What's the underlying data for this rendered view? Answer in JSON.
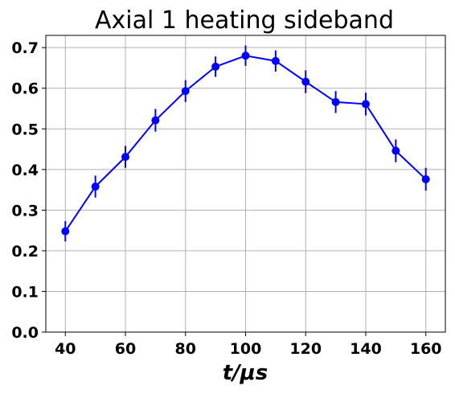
{
  "chart_data": {
    "type": "line",
    "title": "Axial 1 heating sideband",
    "xlabel": "t/μs",
    "ylabel": "",
    "xlim": [
      33.5,
      166.5
    ],
    "ylim": [
      0,
      0.73
    ],
    "xticks": [
      40,
      60,
      80,
      100,
      120,
      140,
      160
    ],
    "xtick_labels": [
      "40",
      "60",
      "80",
      "100",
      "120",
      "140",
      "160"
    ],
    "yticks": [
      0.0,
      0.1,
      0.2,
      0.3,
      0.4,
      0.5,
      0.6,
      0.7
    ],
    "ytick_labels": [
      "0.0",
      "0.1",
      "0.2",
      "0.3",
      "0.4",
      "0.5",
      "0.6",
      "0.7"
    ],
    "grid": true,
    "legend": false,
    "series": [
      {
        "color": "#0000ff",
        "marker": "circle",
        "errorbars": true,
        "x": [
          40,
          50,
          60,
          70,
          80,
          90,
          100,
          110,
          120,
          130,
          140,
          150,
          160
        ],
        "y": [
          0.248,
          0.358,
          0.431,
          0.521,
          0.593,
          0.653,
          0.68,
          0.667,
          0.616,
          0.566,
          0.561,
          0.446,
          0.376
        ],
        "yerr": [
          0.025,
          0.027,
          0.027,
          0.028,
          0.027,
          0.025,
          0.025,
          0.026,
          0.028,
          0.027,
          0.028,
          0.028,
          0.028
        ]
      }
    ]
  }
}
